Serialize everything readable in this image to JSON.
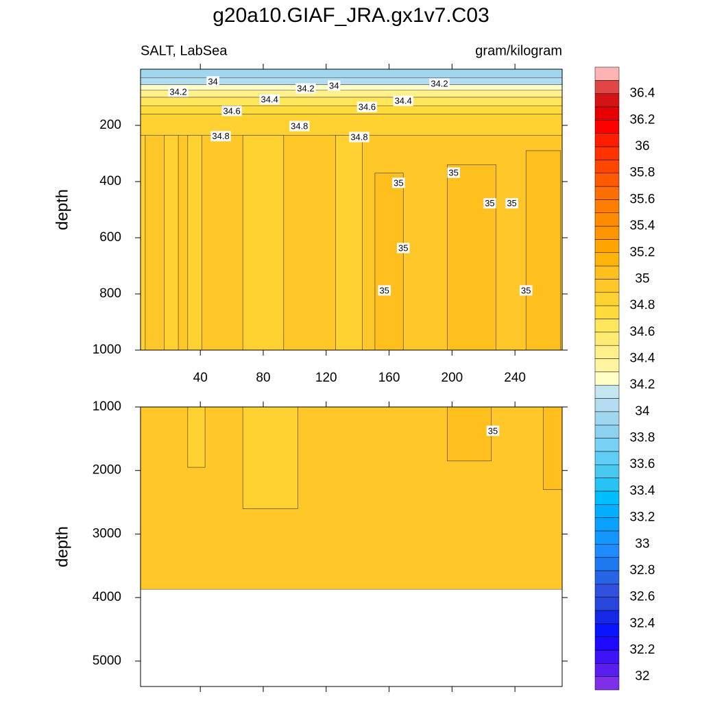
{
  "title": "g20a10.GIAF_JRA.gx1v7.C03",
  "chart_data": [
    {
      "type": "contour",
      "left_label": "SALT, LabSea",
      "right_label": "gram/kilogram",
      "ylabel": "depth",
      "xlim": [
        2,
        270
      ],
      "xticks": [
        40,
        80,
        120,
        160,
        200,
        240
      ],
      "ylim": [
        0,
        1000
      ],
      "yticks": [
        200,
        400,
        600,
        800,
        1000
      ],
      "bands": [
        {
          "from": 0,
          "to": 30,
          "value": 33.95
        },
        {
          "from": 30,
          "to": 55,
          "value": 34.05
        },
        {
          "from": 55,
          "to": 75,
          "value": 34.25
        },
        {
          "from": 75,
          "to": 100,
          "value": 34.45
        },
        {
          "from": 100,
          "to": 130,
          "value": 34.6
        },
        {
          "from": 130,
          "to": 160,
          "value": 34.7
        },
        {
          "from": 160,
          "to": 235,
          "value": 34.85
        },
        {
          "from": 235,
          "to": 1000,
          "value": 34.95
        }
      ],
      "columns": [
        {
          "x0": 2,
          "x1": 5,
          "from": 235,
          "to": 1000,
          "value": 34.85
        },
        {
          "x0": 17,
          "x1": 26,
          "from": 235,
          "to": 1000,
          "value": 34.85
        },
        {
          "x0": 32,
          "x1": 41,
          "from": 235,
          "to": 1000,
          "value": 34.85
        },
        {
          "x0": 67,
          "x1": 93,
          "from": 235,
          "to": 1000,
          "value": 34.85
        },
        {
          "x0": 126,
          "x1": 143,
          "from": 235,
          "to": 1000,
          "value": 34.85
        },
        {
          "x0": 151,
          "x1": 169,
          "from": 370,
          "to": 1000,
          "value": 35.05
        },
        {
          "x0": 197,
          "x1": 228,
          "from": 340,
          "to": 1000,
          "value": 35.05
        },
        {
          "x0": 247,
          "x1": 269,
          "from": 290,
          "to": 1000,
          "value": 35.05
        }
      ],
      "annotations": [
        {
          "text": "34.2",
          "x": 26,
          "y": 83
        },
        {
          "text": "34",
          "x": 48,
          "y": 46
        },
        {
          "text": "34.2",
          "x": 107,
          "y": 71
        },
        {
          "text": "34",
          "x": 125,
          "y": 61
        },
        {
          "text": "34.2",
          "x": 192,
          "y": 54
        },
        {
          "text": "34.4",
          "x": 84,
          "y": 110
        },
        {
          "text": "34.4",
          "x": 169,
          "y": 115
        },
        {
          "text": "34.6",
          "x": 60,
          "y": 151
        },
        {
          "text": "34.6",
          "x": 146,
          "y": 137
        },
        {
          "text": "34.8",
          "x": 53,
          "y": 241
        },
        {
          "text": "34.8",
          "x": 103,
          "y": 205
        },
        {
          "text": "34.8",
          "x": 141,
          "y": 244
        },
        {
          "text": "35",
          "x": 166,
          "y": 407
        },
        {
          "text": "35",
          "x": 201,
          "y": 371
        },
        {
          "text": "35",
          "x": 224,
          "y": 480
        },
        {
          "text": "35",
          "x": 238,
          "y": 480
        },
        {
          "text": "35",
          "x": 169,
          "y": 639
        },
        {
          "text": "35",
          "x": 157,
          "y": 790
        },
        {
          "text": "35",
          "x": 247,
          "y": 790
        }
      ]
    },
    {
      "type": "contour",
      "ylabel": "depth",
      "xlim": [
        2,
        270
      ],
      "xticks": [
        40,
        80,
        120,
        160,
        200,
        240
      ],
      "ylim": [
        1000,
        5400
      ],
      "yticks": [
        1000,
        2000,
        3000,
        4000,
        5000
      ],
      "bands": [
        {
          "from": 1000,
          "to": 3870,
          "value": 34.95
        }
      ],
      "columns": [
        {
          "x0": 32,
          "x1": 43,
          "from": 1000,
          "to": 1950,
          "value": 34.85
        },
        {
          "x0": 67,
          "x1": 102,
          "from": 1000,
          "to": 2600,
          "value": 34.85
        },
        {
          "x0": 197,
          "x1": 225,
          "from": 1000,
          "to": 1850,
          "value": 35.05
        },
        {
          "x0": 258,
          "x1": 270,
          "from": 1000,
          "to": 2300,
          "value": 35.05
        }
      ],
      "annotations": [
        {
          "text": "35",
          "x": 226,
          "y": 1387
        }
      ]
    }
  ],
  "colorbar": {
    "lim": [
      31.9,
      36.6
    ],
    "ticks": [
      32,
      32.2,
      32.4,
      32.6,
      32.8,
      33,
      33.2,
      33.4,
      33.6,
      33.8,
      34,
      34.2,
      34.4,
      34.6,
      34.8,
      35,
      35.2,
      35.4,
      35.6,
      35.8,
      36,
      36.2,
      36.4
    ],
    "colors": [
      "#7f2fe8",
      "#5a1ef0",
      "#3c14f5",
      "#1e0aff",
      "#0a14ff",
      "#1428e6",
      "#2846dc",
      "#3250e0",
      "#2864e6",
      "#1e78f0",
      "#1e8cff",
      "#1496ff",
      "#0aa0ff",
      "#00afff",
      "#00bfff",
      "#28c3f5",
      "#46c8f0",
      "#5fcdf5",
      "#78d2f5",
      "#8cd2f0",
      "#a0d7ee",
      "#b4dcf0",
      "#c3e6f0",
      "#ffffc8",
      "#fff5a0",
      "#fff08c",
      "#ffeb73",
      "#ffe65a",
      "#ffdc3c",
      "#ffd232",
      "#ffc828",
      "#ffc01e",
      "#ffb40a",
      "#ffa500",
      "#ff9600",
      "#ff8c00",
      "#ff7d00",
      "#ff6e00",
      "#ff5a00",
      "#ff4600",
      "#ff3200",
      "#ff1e00",
      "#ff0000",
      "#e60000",
      "#d21414",
      "#e04646",
      "#ffb4b4"
    ]
  }
}
